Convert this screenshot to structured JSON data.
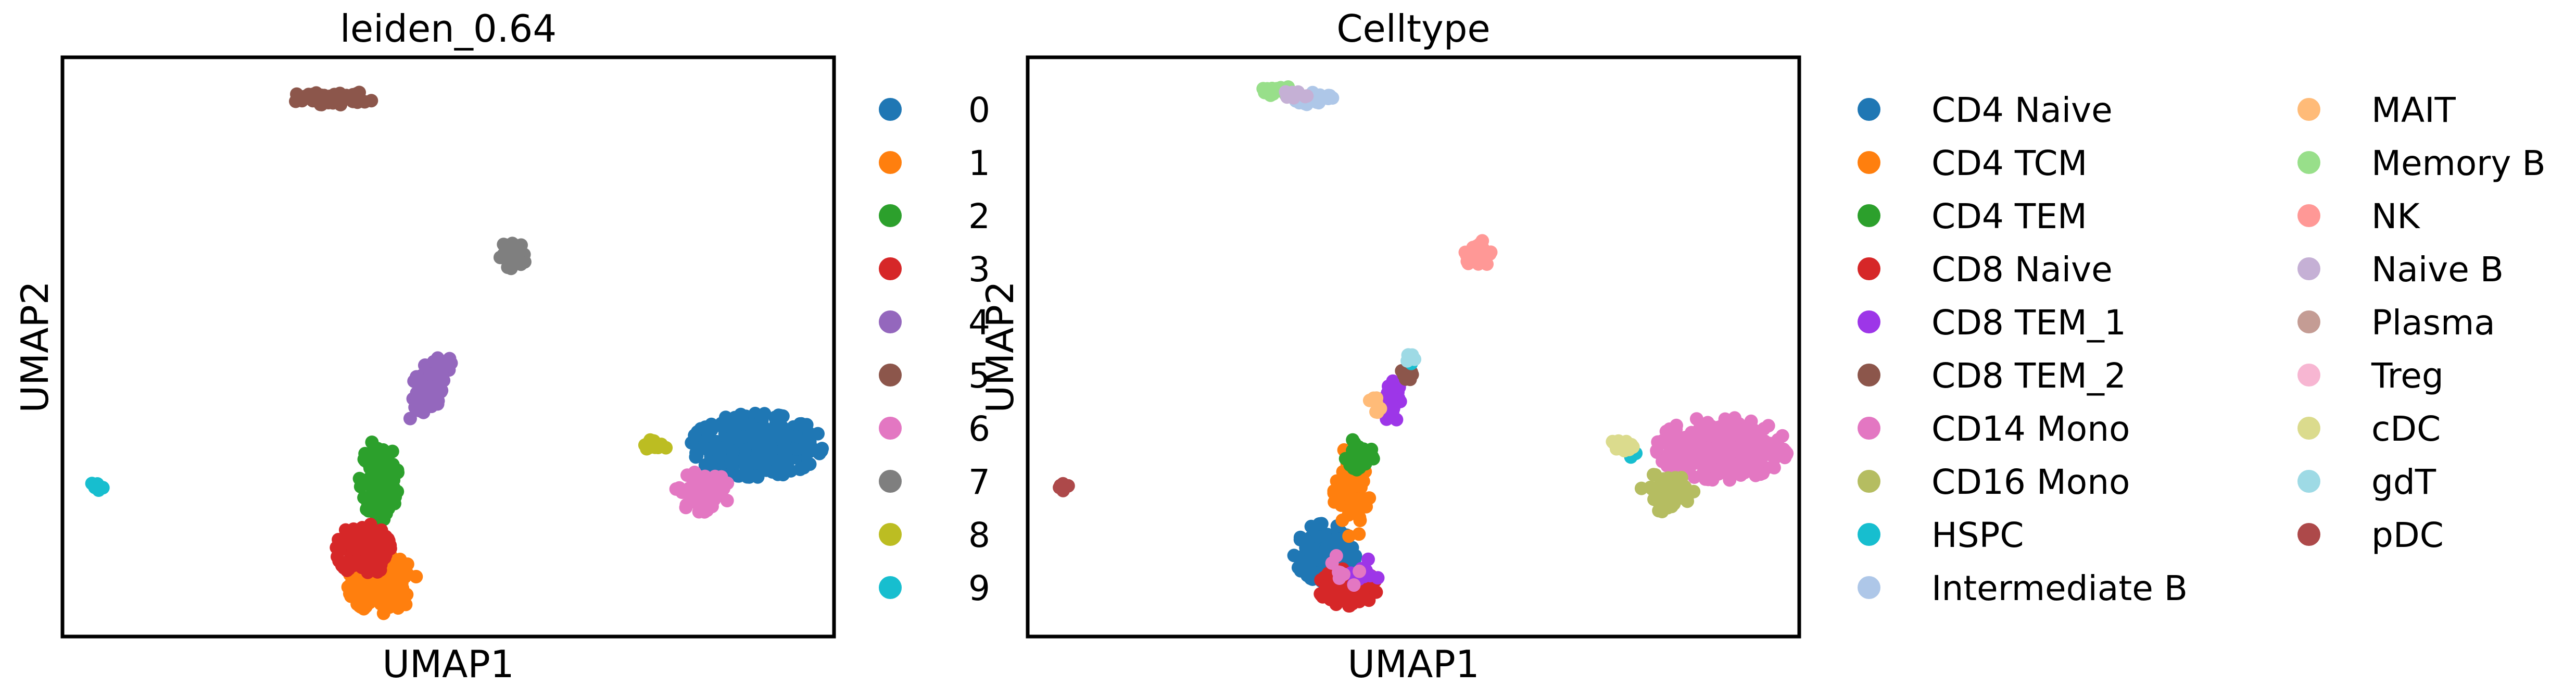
{
  "figure": {
    "background": "#ffffff"
  },
  "chart_data": [
    {
      "type": "scatter",
      "title": "leiden_0.64",
      "xlabel": "UMAP1",
      "ylabel": "UMAP2",
      "xlim": [
        0,
        100
      ],
      "ylim": [
        0,
        100
      ],
      "ticks": false,
      "grid": false,
      "legend_position": "right",
      "series": [
        {
          "name": "0",
          "color": "#1f77b4",
          "clusters": [
            {
              "cx": 90,
              "cy": 33,
              "rx": 8.5,
              "ry": 5.5,
              "n": 320
            }
          ]
        },
        {
          "name": "1",
          "color": "#ff7f0e",
          "clusters": [
            {
              "cx": 41.5,
              "cy": 9,
              "rx": 4.5,
              "ry": 5,
              "n": 200
            }
          ]
        },
        {
          "name": "2",
          "color": "#2ca02c",
          "clusters": [
            {
              "cx": 41,
              "cy": 27,
              "rx": 2.5,
              "ry": 7,
              "n": 140
            }
          ]
        },
        {
          "name": "3",
          "color": "#d62728",
          "clusters": [
            {
              "cx": 39,
              "cy": 15,
              "rx": 3.5,
              "ry": 4.5,
              "n": 150
            }
          ]
        },
        {
          "name": "4",
          "color": "#9467bd",
          "clusters": [
            {
              "cx": 47.5,
              "cy": 43,
              "rx": 2.2,
              "ry": 6,
              "n": 80,
              "tilt": -0.35
            }
          ]
        },
        {
          "name": "5",
          "color": "#8c564b",
          "clusters": [
            {
              "cx": 35,
              "cy": 93,
              "rx": 5.5,
              "ry": 1.2,
              "n": 60
            }
          ]
        },
        {
          "name": "6",
          "color": "#e377c2",
          "clusters": [
            {
              "cx": 83,
              "cy": 25,
              "rx": 3.5,
              "ry": 3.5,
              "n": 70
            }
          ]
        },
        {
          "name": "7",
          "color": "#7f7f7f",
          "clusters": [
            {
              "cx": 58.5,
              "cy": 66,
              "rx": 1.8,
              "ry": 2.5,
              "n": 40
            }
          ]
        },
        {
          "name": "8",
          "color": "#bcbd22",
          "clusters": [
            {
              "cx": 77,
              "cy": 33,
              "rx": 1.5,
              "ry": 1.1,
              "n": 20
            }
          ]
        },
        {
          "name": "9",
          "color": "#17becf",
          "clusters": [
            {
              "cx": 4.5,
              "cy": 26,
              "rx": 0.8,
              "ry": 0.8,
              "n": 10
            }
          ]
        }
      ]
    },
    {
      "type": "scatter",
      "title": "Celltype",
      "xlabel": "UMAP1",
      "ylabel": "UMAP2",
      "xlim": [
        0,
        100
      ],
      "ylim": [
        0,
        100
      ],
      "ticks": false,
      "grid": false,
      "legend_position": "right",
      "legend_columns": 2,
      "series": [
        {
          "name": "CD4 Naive",
          "color": "#1f77b4",
          "clusters": [
            {
              "cx": 38.5,
              "cy": 14.5,
              "rx": 4,
              "ry": 5,
              "n": 170
            }
          ]
        },
        {
          "name": "CD4 TCM",
          "color": "#ff7f0e",
          "clusters": [
            {
              "cx": 42,
              "cy": 25,
              "rx": 2.3,
              "ry": 8,
              "n": 80
            }
          ]
        },
        {
          "name": "CD4 TEM",
          "color": "#2ca02c",
          "clusters": [
            {
              "cx": 43,
              "cy": 31,
              "rx": 1.8,
              "ry": 3.5,
              "n": 30
            }
          ]
        },
        {
          "name": "CD8 Naive",
          "color": "#d62728",
          "clusters": [
            {
              "cx": 41.5,
              "cy": 8.5,
              "rx": 3.8,
              "ry": 3.2,
              "n": 110
            }
          ]
        },
        {
          "name": "CD8 TEM_1",
          "color": "#9d36e8",
          "clusters": [
            {
              "cx": 47,
              "cy": 41,
              "rx": 1.3,
              "ry": 4.5,
              "n": 35
            },
            {
              "cx": 43.5,
              "cy": 11,
              "rx": 2,
              "ry": 2.5,
              "n": 10
            }
          ]
        },
        {
          "name": "CD8 TEM_2",
          "color": "#8c564b",
          "clusters": [
            {
              "cx": 49,
              "cy": 45,
              "rx": 1,
              "ry": 1.5,
              "n": 12
            }
          ]
        },
        {
          "name": "CD14 Mono",
          "color": "#e377c2",
          "clusters": [
            {
              "cx": 90,
              "cy": 32.5,
              "rx": 8.5,
              "ry": 5.5,
              "n": 330
            },
            {
              "cx": 40.5,
              "cy": 11,
              "rx": 2.5,
              "ry": 3,
              "n": 8
            }
          ]
        },
        {
          "name": "CD16 Mono",
          "color": "#b5bd61",
          "clusters": [
            {
              "cx": 83,
              "cy": 25,
              "rx": 3.5,
              "ry": 3.5,
              "n": 70
            }
          ]
        },
        {
          "name": "HSPC",
          "color": "#17becf",
          "clusters": [
            {
              "cx": 78.5,
              "cy": 31.5,
              "rx": 0.6,
              "ry": 0.6,
              "n": 4
            },
            {
              "cx": 49.5,
              "cy": 47.5,
              "rx": 0.6,
              "ry": 0.6,
              "n": 3
            }
          ]
        },
        {
          "name": "Intermediate B",
          "color": "#aec7e8",
          "clusters": [
            {
              "cx": 37,
              "cy": 93,
              "rx": 2.5,
              "ry": 1.2,
              "n": 30
            }
          ]
        },
        {
          "name": "MAIT",
          "color": "#ffbb78",
          "clusters": [
            {
              "cx": 45,
              "cy": 40,
              "rx": 0.8,
              "ry": 1.4,
              "n": 8
            }
          ]
        },
        {
          "name": "Memory B",
          "color": "#98df8a",
          "clusters": [
            {
              "cx": 32.5,
              "cy": 94,
              "rx": 2.5,
              "ry": 1,
              "n": 25
            }
          ]
        },
        {
          "name": "NK",
          "color": "#ff9896",
          "clusters": [
            {
              "cx": 58.5,
              "cy": 66,
              "rx": 1.8,
              "ry": 2.5,
              "n": 40
            }
          ]
        },
        {
          "name": "Naive B",
          "color": "#c5b0d5",
          "clusters": [
            {
              "cx": 34.5,
              "cy": 93.5,
              "rx": 2,
              "ry": 1,
              "n": 10
            }
          ]
        },
        {
          "name": "Plasma",
          "color": "#c49c94",
          "clusters": []
        },
        {
          "name": "Treg",
          "color": "#f7b6d2",
          "clusters": []
        },
        {
          "name": "cDC",
          "color": "#dbdb8d",
          "clusters": [
            {
              "cx": 77,
              "cy": 33,
              "rx": 1.5,
              "ry": 1.1,
              "n": 20
            }
          ]
        },
        {
          "name": "gdT",
          "color": "#9edae5",
          "clusters": [
            {
              "cx": 49.5,
              "cy": 48,
              "rx": 0.8,
              "ry": 0.8,
              "n": 6
            }
          ]
        },
        {
          "name": "pDC",
          "color": "#ad494a",
          "clusters": [
            {
              "cx": 4.5,
              "cy": 26,
              "rx": 0.8,
              "ry": 0.8,
              "n": 10
            }
          ]
        }
      ]
    }
  ]
}
